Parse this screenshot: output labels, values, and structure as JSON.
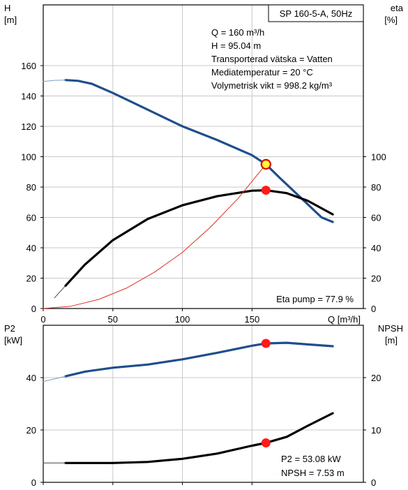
{
  "chart_data": [
    {
      "type": "line",
      "title": "SP 160-5-A, 50Hz",
      "left_axis": {
        "label_line1": "H",
        "label_line2": "[m]",
        "range": [
          0,
          200
        ],
        "ticks": [
          0,
          20,
          40,
          60,
          80,
          100,
          120,
          140,
          160
        ]
      },
      "right_axis": {
        "label_line1": "eta",
        "label_line2": "[%]",
        "range": [
          0,
          200
        ],
        "ticks": [
          0,
          20,
          40,
          60,
          80,
          100
        ]
      },
      "x_axis": {
        "label": "Q [m³/h]",
        "range": [
          0,
          230
        ],
        "ticks": [
          0,
          50,
          100,
          150
        ]
      },
      "grid": true,
      "series": [
        {
          "key": "H",
          "color": "#1f4e8c",
          "axis": "left",
          "points": [
            [
              16,
              150.5
            ],
            [
              25,
              150
            ],
            [
              35,
              148
            ],
            [
              50,
              142
            ],
            [
              75,
              131
            ],
            [
              100,
              120
            ],
            [
              125,
              111
            ],
            [
              150,
              101
            ],
            [
              160,
              95
            ],
            [
              170,
              86
            ],
            [
              185,
              73
            ],
            [
              200,
              60
            ],
            [
              208,
              57
            ]
          ]
        },
        {
          "key": "H_ext",
          "color": "#7b9cc7",
          "axis": "left",
          "thin": true,
          "points": [
            [
              0,
              149.5
            ],
            [
              8,
              150.3
            ],
            [
              16,
              150.5
            ]
          ]
        },
        {
          "key": "eta",
          "color": "#000000",
          "axis": "right",
          "points": [
            [
              16,
              15
            ],
            [
              30,
              29
            ],
            [
              50,
              45
            ],
            [
              75,
              59
            ],
            [
              100,
              68
            ],
            [
              125,
              74
            ],
            [
              150,
              77.6
            ],
            [
              160,
              77.9
            ],
            [
              175,
              76
            ],
            [
              190,
              71
            ],
            [
              208,
              62
            ]
          ]
        },
        {
          "key": "eta_ext",
          "color": "#444444",
          "axis": "right",
          "thin": true,
          "points": [
            [
              8,
              7
            ],
            [
              16,
              15
            ]
          ]
        },
        {
          "key": "system",
          "color": "#d93025",
          "axis": "left",
          "thin": true,
          "points": [
            [
              0,
              0
            ],
            [
              20,
              1.5
            ],
            [
              40,
              6
            ],
            [
              60,
              13.5
            ],
            [
              80,
              24
            ],
            [
              100,
              37
            ],
            [
              120,
              53.5
            ],
            [
              140,
              72.5
            ],
            [
              160,
              95
            ]
          ]
        }
      ],
      "markers": [
        {
          "x": 160,
          "y": 95,
          "axis": "left",
          "style": "duty"
        },
        {
          "x": 160,
          "y": 77.9,
          "axis": "right",
          "style": "point"
        }
      ],
      "info_lines": [
        "Q = 160 m³/h",
        "H = 95.04 m",
        "Transporterad vätska = Vatten",
        "Mediatemperatur = 20 °C",
        "Volymetrisk vikt = 998.2 kg/m³"
      ],
      "eta_label": "Eta pump = 77.9 %"
    },
    {
      "type": "line",
      "left_axis": {
        "label_line1": "P2",
        "label_line2": "[kW]",
        "range": [
          0,
          60
        ],
        "ticks": [
          0,
          20,
          40
        ]
      },
      "right_axis": {
        "label_line1": "NPSH",
        "label_line2": "[m]",
        "range": [
          0,
          30
        ],
        "ticks": [
          0,
          10,
          20
        ]
      },
      "x_axis": {
        "range": [
          0,
          230
        ],
        "ticks": [
          0,
          50,
          100,
          150
        ]
      },
      "grid": true,
      "series": [
        {
          "key": "P2",
          "color": "#1f4e8c",
          "axis": "left",
          "points": [
            [
              16,
              40.5
            ],
            [
              30,
              42.3
            ],
            [
              50,
              43.8
            ],
            [
              75,
              45
            ],
            [
              100,
              47
            ],
            [
              125,
              49.5
            ],
            [
              150,
              52.2
            ],
            [
              160,
              53.08
            ],
            [
              175,
              53.3
            ],
            [
              190,
              52.7
            ],
            [
              208,
              52
            ]
          ]
        },
        {
          "key": "P2_ext",
          "color": "#7b9cc7",
          "axis": "left",
          "thin": true,
          "points": [
            [
              0,
              38.5
            ],
            [
              8,
              39.5
            ],
            [
              16,
              40.5
            ]
          ]
        },
        {
          "key": "NPSH",
          "color": "#000000",
          "axis": "right",
          "points": [
            [
              16,
              3.7
            ],
            [
              50,
              3.7
            ],
            [
              75,
              3.9
            ],
            [
              100,
              4.5
            ],
            [
              125,
              5.5
            ],
            [
              150,
              7
            ],
            [
              160,
              7.53
            ],
            [
              175,
              8.7
            ],
            [
              190,
              10.8
            ],
            [
              208,
              13.2
            ]
          ]
        },
        {
          "key": "NPSH_ext",
          "color": "#444444",
          "axis": "right",
          "thin": true,
          "points": [
            [
              0,
              3.7
            ],
            [
              16,
              3.7
            ]
          ]
        }
      ],
      "markers": [
        {
          "x": 160,
          "y": 53.08,
          "axis": "left",
          "style": "point"
        },
        {
          "x": 160,
          "y": 7.53,
          "axis": "right",
          "style": "point"
        }
      ],
      "info_lines": [
        "P2 = 53.08 kW",
        "NPSH = 7.53 m"
      ]
    }
  ]
}
